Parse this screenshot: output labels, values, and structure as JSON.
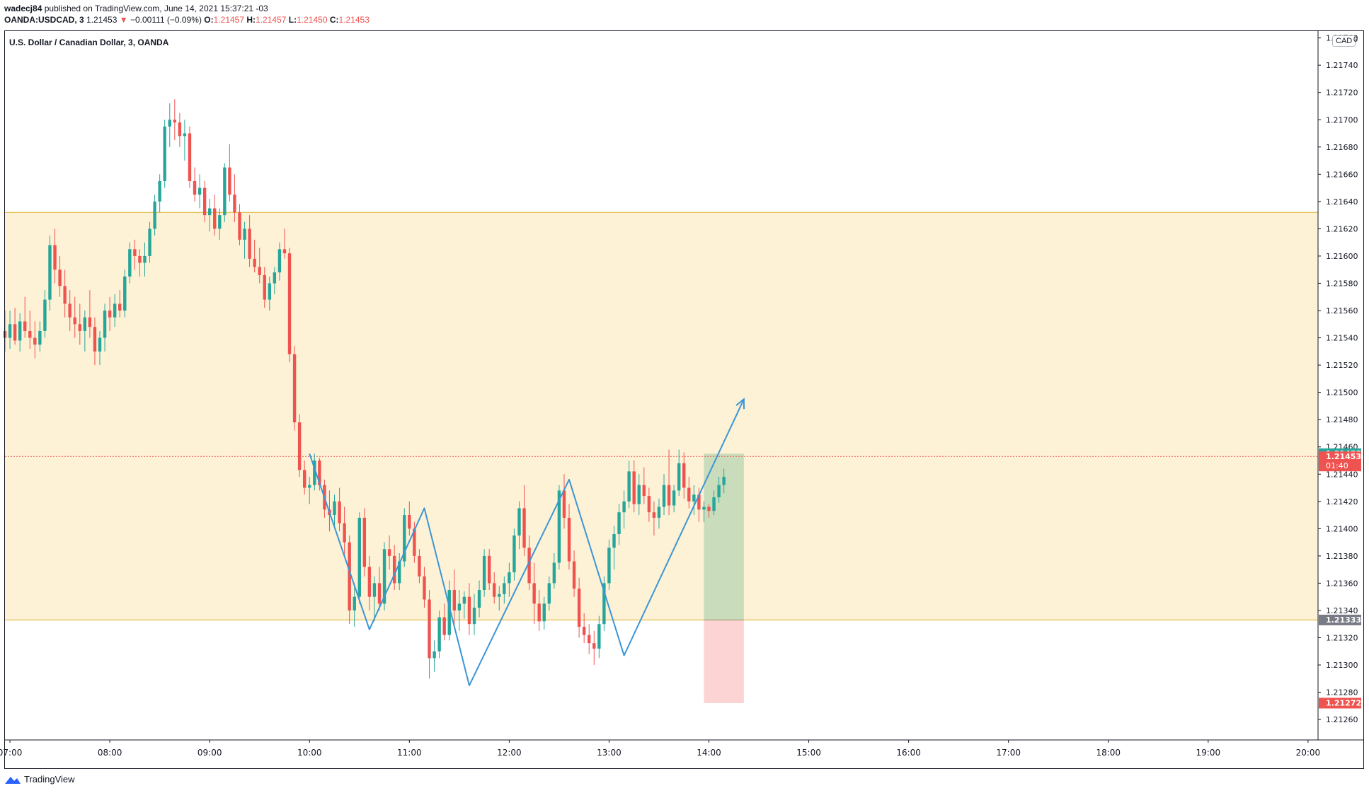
{
  "header": {
    "author": "wadecj84",
    "published_text": "published on TradingView.com, June 14, 2021 15:37:21 -03",
    "symbol": "OANDA:USDCAD, 3",
    "last": "1.21453",
    "change_arrow": "▼",
    "change": "−0.00111 (−0.09%)",
    "o_label": "O:",
    "o": "1.21457",
    "h_label": "H:",
    "h": "1.21457",
    "l_label": "L:",
    "l": "1.21450",
    "c_label": "C:",
    "c": "1.21453"
  },
  "chart_title": "U.S. Dollar / Canadian Dollar, 3, OANDA",
  "currency": "CAD",
  "currency_extra": "0",
  "footer_brand": "TradingView",
  "colors": {
    "up": "#26a69a",
    "down": "#ef5350",
    "zone_fill": "#fdf1d6",
    "zone_line": "#e0b02a",
    "pattern": "#3b96d6",
    "target": "#c9dcbc",
    "stop": "#fcd4d4",
    "axis_text": "#131722"
  },
  "chart_data": {
    "type": "candlestick",
    "title": "U.S. Dollar / Canadian Dollar, 3, OANDA",
    "ylim": [
      1.21245,
      1.21765
    ],
    "y_ticks": [
      "1.21260",
      "1.21280",
      "1.21300",
      "1.21320",
      "1.21340",
      "1.21360",
      "1.21380",
      "1.21400",
      "1.21420",
      "1.21440",
      "1.21460",
      "1.21480",
      "1.21500",
      "1.21520",
      "1.21540",
      "1.21560",
      "1.21580",
      "1.21600",
      "1.21620",
      "1.21640",
      "1.21660",
      "1.21680",
      "1.21700",
      "1.21720",
      "1.21740",
      "1.21760"
    ],
    "x_ticks": [
      "07:00",
      "08:00",
      "09:00",
      "10:00",
      "11:00",
      "12:00",
      "13:00",
      "14:00",
      "15:00",
      "16:00",
      "17:00",
      "18:00",
      "19:00",
      "20:00"
    ],
    "x_start": "06:57",
    "x_end": "20:06",
    "candles": [
      [
        "06:57",
        1.21545,
        1.2156,
        1.2153,
        1.2154
      ],
      [
        "07:00",
        1.2154,
        1.2156,
        1.21532,
        1.2155
      ],
      [
        "07:03",
        1.2155,
        1.21562,
        1.21535,
        1.21538
      ],
      [
        "07:06",
        1.21538,
        1.21558,
        1.2153,
        1.21552
      ],
      [
        "07:09",
        1.21552,
        1.2157,
        1.2154,
        1.21545
      ],
      [
        "07:12",
        1.21545,
        1.2156,
        1.21532,
        1.2154
      ],
      [
        "07:15",
        1.2154,
        1.21552,
        1.21525,
        1.21535
      ],
      [
        "07:18",
        1.21535,
        1.21552,
        1.2153,
        1.21545
      ],
      [
        "07:21",
        1.21545,
        1.21575,
        1.2154,
        1.21568
      ],
      [
        "07:24",
        1.21568,
        1.21615,
        1.2156,
        1.21608
      ],
      [
        "07:27",
        1.21608,
        1.2162,
        1.2158,
        1.2159
      ],
      [
        "07:30",
        1.2159,
        1.216,
        1.2157,
        1.21578
      ],
      [
        "07:33",
        1.21578,
        1.2159,
        1.21555,
        1.21565
      ],
      [
        "07:36",
        1.21565,
        1.21575,
        1.21545,
        1.21555
      ],
      [
        "07:39",
        1.21555,
        1.2157,
        1.2154,
        1.2155
      ],
      [
        "07:42",
        1.2155,
        1.21565,
        1.21535,
        1.21545
      ],
      [
        "07:45",
        1.21545,
        1.2156,
        1.2153,
        1.21555
      ],
      [
        "07:48",
        1.21555,
        1.21575,
        1.2154,
        1.21548
      ],
      [
        "07:51",
        1.21548,
        1.21555,
        1.2152,
        1.2153
      ],
      [
        "07:54",
        1.2153,
        1.21545,
        1.2152,
        1.2154
      ],
      [
        "07:57",
        1.2154,
        1.21565,
        1.2153,
        1.2156
      ],
      [
        "08:00",
        1.2156,
        1.2157,
        1.21545,
        1.21555
      ],
      [
        "08:03",
        1.21555,
        1.21572,
        1.21548,
        1.21565
      ],
      [
        "08:06",
        1.21565,
        1.21575,
        1.21555,
        1.2156
      ],
      [
        "08:09",
        1.2156,
        1.2159,
        1.21555,
        1.21585
      ],
      [
        "08:12",
        1.21585,
        1.2161,
        1.2158,
        1.21605
      ],
      [
        "08:15",
        1.21605,
        1.21612,
        1.2159,
        1.216
      ],
      [
        "08:18",
        1.216,
        1.21605,
        1.21585,
        1.21595
      ],
      [
        "08:21",
        1.21595,
        1.2161,
        1.21585,
        1.216
      ],
      [
        "08:24",
        1.216,
        1.21625,
        1.21595,
        1.2162
      ],
      [
        "08:27",
        1.2162,
        1.21645,
        1.21615,
        1.2164
      ],
      [
        "08:30",
        1.2164,
        1.2166,
        1.21632,
        1.21655
      ],
      [
        "08:33",
        1.21655,
        1.217,
        1.2165,
        1.21695
      ],
      [
        "08:36",
        1.21695,
        1.21712,
        1.2168,
        1.217
      ],
      [
        "08:39",
        1.217,
        1.21715,
        1.21685,
        1.21698
      ],
      [
        "08:42",
        1.21698,
        1.21705,
        1.2168,
        1.21688
      ],
      [
        "08:45",
        1.21688,
        1.217,
        1.2167,
        1.2169
      ],
      [
        "08:48",
        1.2169,
        1.21695,
        1.2165,
        1.21655
      ],
      [
        "08:51",
        1.21655,
        1.21665,
        1.2164,
        1.21645
      ],
      [
        "08:54",
        1.21645,
        1.2166,
        1.21635,
        1.2165
      ],
      [
        "08:57",
        1.2165,
        1.21655,
        1.21625,
        1.2163
      ],
      [
        "09:00",
        1.2163,
        1.21642,
        1.21618,
        1.21635
      ],
      [
        "09:03",
        1.21635,
        1.21645,
        1.21615,
        1.2162
      ],
      [
        "09:06",
        1.2162,
        1.21635,
        1.21612,
        1.2163
      ],
      [
        "09:09",
        1.2163,
        1.21668,
        1.21625,
        1.21665
      ],
      [
        "09:12",
        1.21665,
        1.21682,
        1.2164,
        1.21645
      ],
      [
        "09:15",
        1.21645,
        1.2166,
        1.21625,
        1.21632
      ],
      [
        "09:18",
        1.21632,
        1.21638,
        1.21608,
        1.21612
      ],
      [
        "09:21",
        1.21612,
        1.21625,
        1.21598,
        1.2162
      ],
      [
        "09:24",
        1.2162,
        1.2163,
        1.21592,
        1.21598
      ],
      [
        "09:27",
        1.21598,
        1.21612,
        1.21588,
        1.21592
      ],
      [
        "09:30",
        1.21592,
        1.21606,
        1.2158,
        1.21586
      ],
      [
        "09:33",
        1.21586,
        1.21592,
        1.21562,
        1.21568
      ],
      [
        "09:36",
        1.21568,
        1.21585,
        1.2156,
        1.2158
      ],
      [
        "09:39",
        1.2158,
        1.21592,
        1.21572,
        1.21588
      ],
      [
        "09:42",
        1.21588,
        1.2161,
        1.21582,
        1.21605
      ],
      [
        "09:45",
        1.21605,
        1.2162,
        1.21598,
        1.21602
      ],
      [
        "09:48",
        1.21602,
        1.21606,
        1.21522,
        1.21528
      ],
      [
        "09:51",
        1.21528,
        1.21534,
        1.21472,
        1.21478
      ],
      [
        "09:54",
        1.21478,
        1.21484,
        1.21438,
        1.21443
      ],
      [
        "09:57",
        1.21443,
        1.2145,
        1.21425,
        1.2143
      ],
      [
        "10:00",
        1.2143,
        1.21438,
        1.21418,
        1.21432
      ],
      [
        "10:03",
        1.21432,
        1.21455,
        1.21428,
        1.2145
      ],
      [
        "10:06",
        1.2145,
        1.21452,
        1.21428,
        1.21432
      ],
      [
        "10:09",
        1.21432,
        1.21436,
        1.21408,
        1.21414
      ],
      [
        "10:12",
        1.21414,
        1.21428,
        1.21398,
        1.2141
      ],
      [
        "10:15",
        1.2141,
        1.21425,
        1.21402,
        1.2142
      ],
      [
        "10:18",
        1.2142,
        1.2143,
        1.21398,
        1.21404
      ],
      [
        "10:21",
        1.21404,
        1.21416,
        1.2138,
        1.2139
      ],
      [
        "10:24",
        1.2139,
        1.21395,
        1.2133,
        1.2134
      ],
      [
        "10:27",
        1.2134,
        1.2136,
        1.21328,
        1.2135
      ],
      [
        "10:30",
        1.2135,
        1.21412,
        1.21345,
        1.21408
      ],
      [
        "10:33",
        1.21408,
        1.21415,
        1.21365,
        1.21372
      ],
      [
        "10:36",
        1.21372,
        1.2138,
        1.2134,
        1.2135
      ],
      [
        "10:39",
        1.2135,
        1.21365,
        1.21332,
        1.2136
      ],
      [
        "10:42",
        1.2136,
        1.21372,
        1.2134,
        1.21345
      ],
      [
        "10:45",
        1.21345,
        1.2139,
        1.2134,
        1.21385
      ],
      [
        "10:48",
        1.21385,
        1.21395,
        1.2137,
        1.2138
      ],
      [
        "10:51",
        1.2138,
        1.21388,
        1.21355,
        1.2136
      ],
      [
        "10:54",
        1.2136,
        1.21382,
        1.21355,
        1.21376
      ],
      [
        "10:57",
        1.21376,
        1.21415,
        1.21372,
        1.2141
      ],
      [
        "11:00",
        1.2141,
        1.2142,
        1.21395,
        1.214
      ],
      [
        "11:03",
        1.214,
        1.21405,
        1.21375,
        1.2138
      ],
      [
        "11:06",
        1.2138,
        1.21385,
        1.2136,
        1.21365
      ],
      [
        "11:09",
        1.21365,
        1.21372,
        1.21342,
        1.21348
      ],
      [
        "11:12",
        1.21348,
        1.21355,
        1.2129,
        1.21305
      ],
      [
        "11:15",
        1.21305,
        1.21318,
        1.21295,
        1.2131
      ],
      [
        "11:18",
        1.2131,
        1.2134,
        1.21305,
        1.21335
      ],
      [
        "11:21",
        1.21335,
        1.21345,
        1.21318,
        1.21322
      ],
      [
        "11:24",
        1.21322,
        1.21362,
        1.21318,
        1.21355
      ],
      [
        "11:27",
        1.21355,
        1.2137,
        1.2133,
        1.2134
      ],
      [
        "11:30",
        1.2134,
        1.21355,
        1.21325,
        1.21345
      ],
      [
        "11:33",
        1.21345,
        1.21354,
        1.21334,
        1.2135
      ],
      [
        "11:36",
        1.2135,
        1.2136,
        1.21322,
        1.2133
      ],
      [
        "11:39",
        1.2133,
        1.21352,
        1.21322,
        1.21342
      ],
      [
        "11:42",
        1.21342,
        1.21362,
        1.21335,
        1.21355
      ],
      [
        "11:45",
        1.21355,
        1.21385,
        1.2135,
        1.2138
      ],
      [
        "11:48",
        1.2138,
        1.21385,
        1.21355,
        1.2136
      ],
      [
        "11:51",
        1.2136,
        1.21368,
        1.21345,
        1.2135
      ],
      [
        "11:54",
        1.2135,
        1.21358,
        1.2134,
        1.21352
      ],
      [
        "11:57",
        1.21352,
        1.21365,
        1.21345,
        1.2136
      ],
      [
        "12:00",
        1.2136,
        1.21375,
        1.2135,
        1.21368
      ],
      [
        "12:03",
        1.21368,
        1.214,
        1.21362,
        1.21395
      ],
      [
        "12:06",
        1.21395,
        1.2142,
        1.21385,
        1.21415
      ],
      [
        "12:09",
        1.21415,
        1.21432,
        1.2138,
        1.21386
      ],
      [
        "12:12",
        1.21386,
        1.21395,
        1.21355,
        1.2136
      ],
      [
        "12:15",
        1.2136,
        1.21375,
        1.2133,
        1.21345
      ],
      [
        "12:18",
        1.21345,
        1.21355,
        1.21325,
        1.21332
      ],
      [
        "12:21",
        1.21332,
        1.2135,
        1.21326,
        1.21345
      ],
      [
        "12:24",
        1.21345,
        1.21365,
        1.2134,
        1.2136
      ],
      [
        "12:27",
        1.2136,
        1.21382,
        1.21356,
        1.21375
      ],
      [
        "12:30",
        1.21375,
        1.21432,
        1.2137,
        1.21428
      ],
      [
        "12:33",
        1.21428,
        1.2144,
        1.214,
        1.21408
      ],
      [
        "12:36",
        1.21408,
        1.21418,
        1.2137,
        1.21376
      ],
      [
        "12:39",
        1.21376,
        1.21384,
        1.2135,
        1.21356
      ],
      [
        "12:42",
        1.21356,
        1.21364,
        1.2132,
        1.21328
      ],
      [
        "12:45",
        1.21328,
        1.21338,
        1.21316,
        1.21322
      ],
      [
        "12:48",
        1.21322,
        1.2133,
        1.21308,
        1.21316
      ],
      [
        "12:51",
        1.21316,
        1.21325,
        1.213,
        1.21312
      ],
      [
        "12:54",
        1.21312,
        1.21336,
        1.21305,
        1.2133
      ],
      [
        "12:57",
        1.2133,
        1.21365,
        1.21325,
        1.2136
      ],
      [
        "13:00",
        1.2136,
        1.21392,
        1.21355,
        1.21386
      ],
      [
        "13:03",
        1.21386,
        1.21402,
        1.2137,
        1.21396
      ],
      [
        "13:06",
        1.21396,
        1.21418,
        1.21388,
        1.21412
      ],
      [
        "13:09",
        1.21412,
        1.21428,
        1.214,
        1.2142
      ],
      [
        "13:12",
        1.2142,
        1.2145,
        1.21415,
        1.21442
      ],
      [
        "13:15",
        1.21442,
        1.2145,
        1.21412,
        1.21418
      ],
      [
        "13:18",
        1.21418,
        1.2144,
        1.2141,
        1.21432
      ],
      [
        "13:21",
        1.21432,
        1.21445,
        1.21418,
        1.21424
      ],
      [
        "13:24",
        1.21424,
        1.2143,
        1.21405,
        1.21412
      ],
      [
        "13:27",
        1.21412,
        1.2142,
        1.21395,
        1.21408
      ],
      [
        "13:30",
        1.21408,
        1.21422,
        1.214,
        1.21416
      ],
      [
        "13:33",
        1.21416,
        1.2144,
        1.2141,
        1.21432
      ],
      [
        "13:36",
        1.21432,
        1.21458,
        1.2141,
        1.21417
      ],
      [
        "13:39",
        1.21417,
        1.21432,
        1.21412,
        1.21428
      ],
      [
        "13:42",
        1.21428,
        1.21458,
        1.21424,
        1.21448
      ],
      [
        "13:45",
        1.21448,
        1.21456,
        1.21422,
        1.2143
      ],
      [
        "13:48",
        1.2143,
        1.21438,
        1.21415,
        1.2142
      ],
      [
        "13:51",
        1.2142,
        1.21432,
        1.2141,
        1.21425
      ],
      [
        "13:54",
        1.21425,
        1.2143,
        1.21405,
        1.21414
      ],
      [
        "13:57",
        1.21414,
        1.2142,
        1.21405,
        1.21416
      ],
      [
        "14:00",
        1.21416,
        1.21418,
        1.21408,
        1.21413
      ],
      [
        "14:03",
        1.21413,
        1.21428,
        1.2141,
        1.21423
      ],
      [
        "14:06",
        1.21423,
        1.21438,
        1.21419,
        1.21432
      ],
      [
        "14:09",
        1.21432,
        1.21444,
        1.21426,
        1.21438
      ]
    ],
    "zone": {
      "top": 1.21632,
      "bottom": 1.21333
    },
    "position": {
      "entry": 1.21333,
      "target": 1.21455,
      "stop": 1.21272,
      "from": "13:57",
      "to": "14:21"
    },
    "current_price": 1.21453,
    "price_labels": [
      {
        "value": "1.21455",
        "color": "#26a69a",
        "price": 1.21455
      },
      {
        "value": "1.21453",
        "sub": "01:40",
        "color": "#ef5350",
        "price": 1.21453
      },
      {
        "value": "1.21333",
        "color": "#787b86",
        "price": 1.21333
      },
      {
        "value": "1.21272",
        "color": "#ef5350",
        "price": 1.21272
      }
    ],
    "pattern_path": [
      [
        "10:00",
        1.21455
      ],
      [
        "10:36",
        1.21326
      ],
      [
        "11:09",
        1.21415
      ],
      [
        "11:36",
        1.21285
      ],
      [
        "12:36",
        1.21436
      ],
      [
        "13:09",
        1.21307
      ],
      [
        "14:21",
        1.21495
      ]
    ]
  }
}
